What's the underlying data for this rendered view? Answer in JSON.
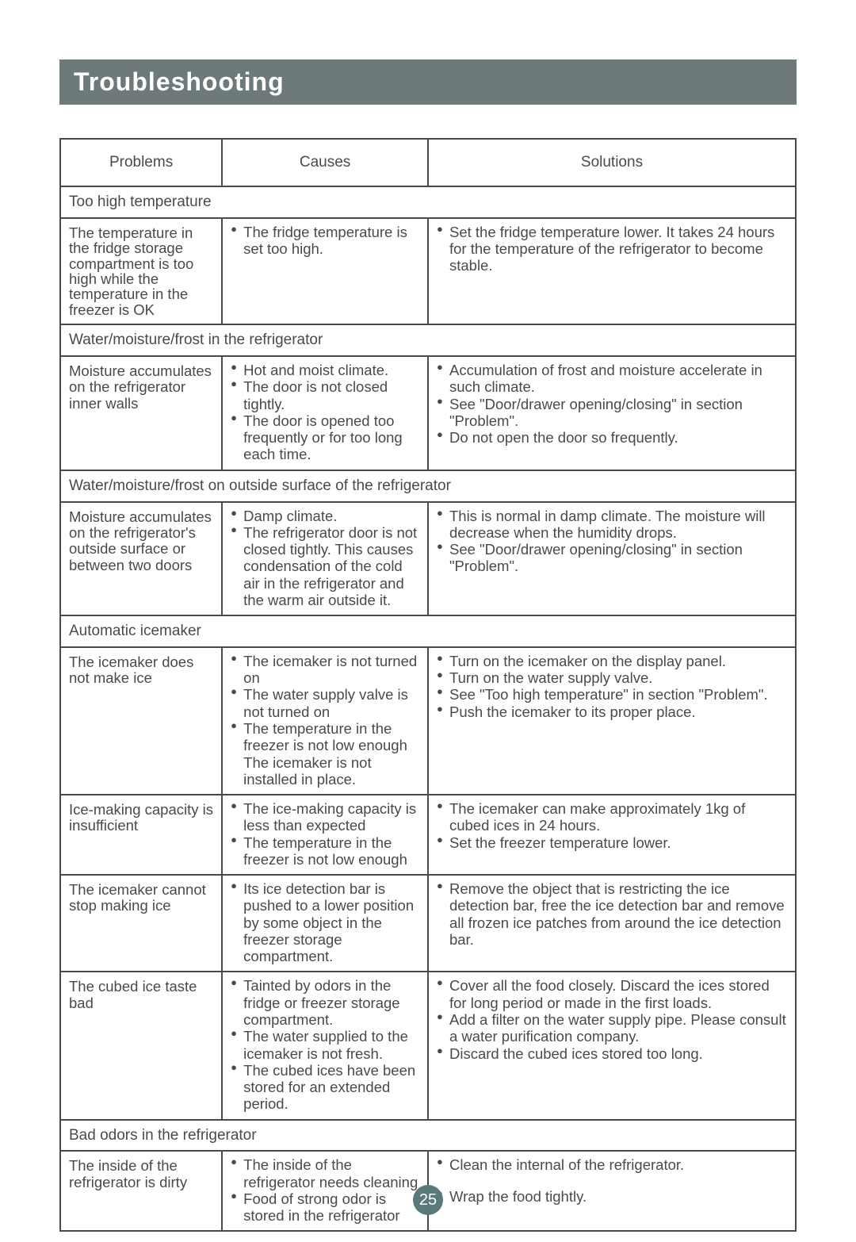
{
  "page": {
    "title": "Troubleshooting",
    "page_number": "25",
    "colors": {
      "header_bg": "#6e7a7a",
      "header_text": "#ffffff",
      "border": "#4a4a4a",
      "text": "#4a4a4a",
      "pagenum_bg": "#5a7a7a"
    },
    "typography": {
      "title_fontsize": 32,
      "header_fontsize": 19,
      "body_fontsize": 18.5,
      "font_family": "Arial"
    }
  },
  "table": {
    "columns": {
      "problem": "Problems",
      "cause": "Causes",
      "solution": "Solutions"
    },
    "column_widths_pct": [
      22,
      28,
      50
    ],
    "sections": [
      {
        "title": "Too high temperature",
        "rows": [
          {
            "problem": "The temperature in the fridge storage compartment is too high while the temperature in the freezer is OK",
            "causes": [
              "The fridge temperature is set too high."
            ],
            "solutions": [
              "Set the fridge temperature lower. It takes 24 hours for the temperature of the refrigerator to become stable."
            ]
          }
        ]
      },
      {
        "title": "Water/moisture/frost in the refrigerator",
        "rows": [
          {
            "problem": "Moisture accumulates on the refrigerator inner walls",
            "causes": [
              "Hot and moist climate.",
              "The door is not closed tightly.",
              "The door is opened too frequently or for too long each time."
            ],
            "solutions": [
              "Accumulation of frost and moisture accelerate in such climate.",
              "See \"Door/drawer opening/closing\" in section \"Problem\".",
              "Do not open the door so frequently."
            ]
          }
        ]
      },
      {
        "title": "Water/moisture/frost on outside surface of the refrigerator",
        "rows": [
          {
            "problem": "Moisture accumulates on the refrigerator's outside surface or between two doors",
            "causes": [
              "Damp climate.",
              "The refrigerator door is not closed tightly. This causes condensation of the cold air in the refrigerator and the warm air outside it."
            ],
            "solutions": [
              "This  is normal in damp climate. The moisture will decrease when the humidity drops.",
              "See \"Door/drawer opening/closing\" in section \"Problem\"."
            ]
          }
        ]
      },
      {
        "title": "Automatic icemaker",
        "rows": [
          {
            "problem": "The icemaker does not make ice",
            "causes": [
              "The icemaker is not turned on",
              "The water supply valve is not turned on",
              "The temperature in the freezer is not low enough The icemaker is not installed in place."
            ],
            "solutions": [
              "Turn on the icemaker on the display panel.",
              "Turn on the water supply valve.",
              "See \"Too high temperature\" in section \"Problem\".",
              "Push the icemaker to its proper place."
            ]
          },
          {
            "problem": "Ice-making capacity is insufficient",
            "causes": [
              "The ice-making capacity is less than expected",
              " The temperature in the freezer is not low enough"
            ],
            "solutions": [
              "The icemaker can make approximately 1kg of cubed ices in 24 hours.",
              "Set the freezer temperature lower."
            ]
          },
          {
            "problem": "The icemaker cannot stop making ice",
            "causes": [
              "Its ice detection bar is pushed to a lower position by some object in the freezer storage compartment."
            ],
            "solutions": [
              "Remove the object that is restricting the ice detection bar, free the ice detection bar and remove all frozen ice patches from around the ice detection bar."
            ]
          },
          {
            "problem": "The cubed ice taste bad",
            "causes": [
              "Tainted by odors in the fridge or freezer storage compartment.",
              "The water supplied to the icemaker is not fresh.",
              "The cubed ices have been stored for an extended period."
            ],
            "solutions": [
              "Cover all the food closely. Discard the ices stored for long period or made in the first loads.",
              "Add a filter on the water supply pipe. Please consult a water purification company.",
              "Discard the cubed ices stored too long."
            ]
          }
        ]
      },
      {
        "title": "Bad odors in the refrigerator",
        "rows": [
          {
            "problem": "The inside of the refrigerator is dirty",
            "causes": [
              "The inside of the refrigerator needs cleaning",
              "Food of strong odor is stored in the refrigerator"
            ],
            "solutions": [
              "Clean the internal of the refrigerator.",
              "Wrap the food tightly."
            ],
            "solution_spacing": "spaced"
          }
        ]
      }
    ]
  }
}
